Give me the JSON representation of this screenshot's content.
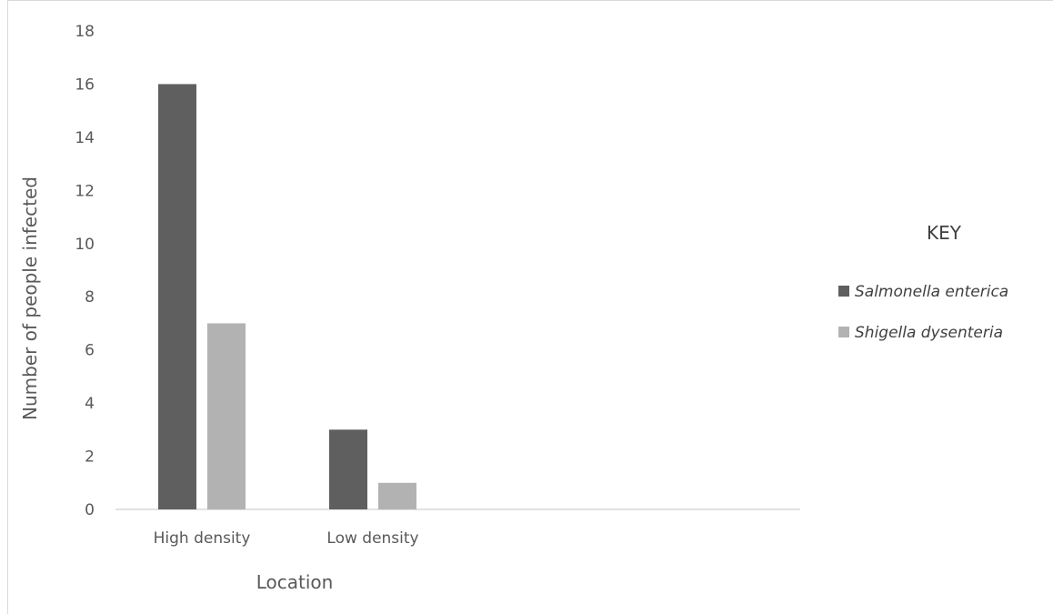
{
  "chart_data": {
    "type": "bar",
    "categories": [
      "High density",
      "Low density"
    ],
    "series": [
      {
        "name": "Salmonella enterica",
        "values": [
          16,
          3
        ],
        "color": "#5f5f5f"
      },
      {
        "name": "Shigella dysenteria",
        "values": [
          7,
          1
        ],
        "color": "#b2b2b2"
      }
    ],
    "xlabel": "Location",
    "ylabel": "Number of people infected",
    "ylim": [
      0,
      18
    ],
    "yticks": [
      0,
      2,
      4,
      6,
      8,
      10,
      12,
      14,
      16,
      18
    ],
    "grid": false,
    "legend": {
      "title": "KEY",
      "placement": "right"
    },
    "axis_color": "#d9d9d9",
    "text_color": "#595959"
  }
}
